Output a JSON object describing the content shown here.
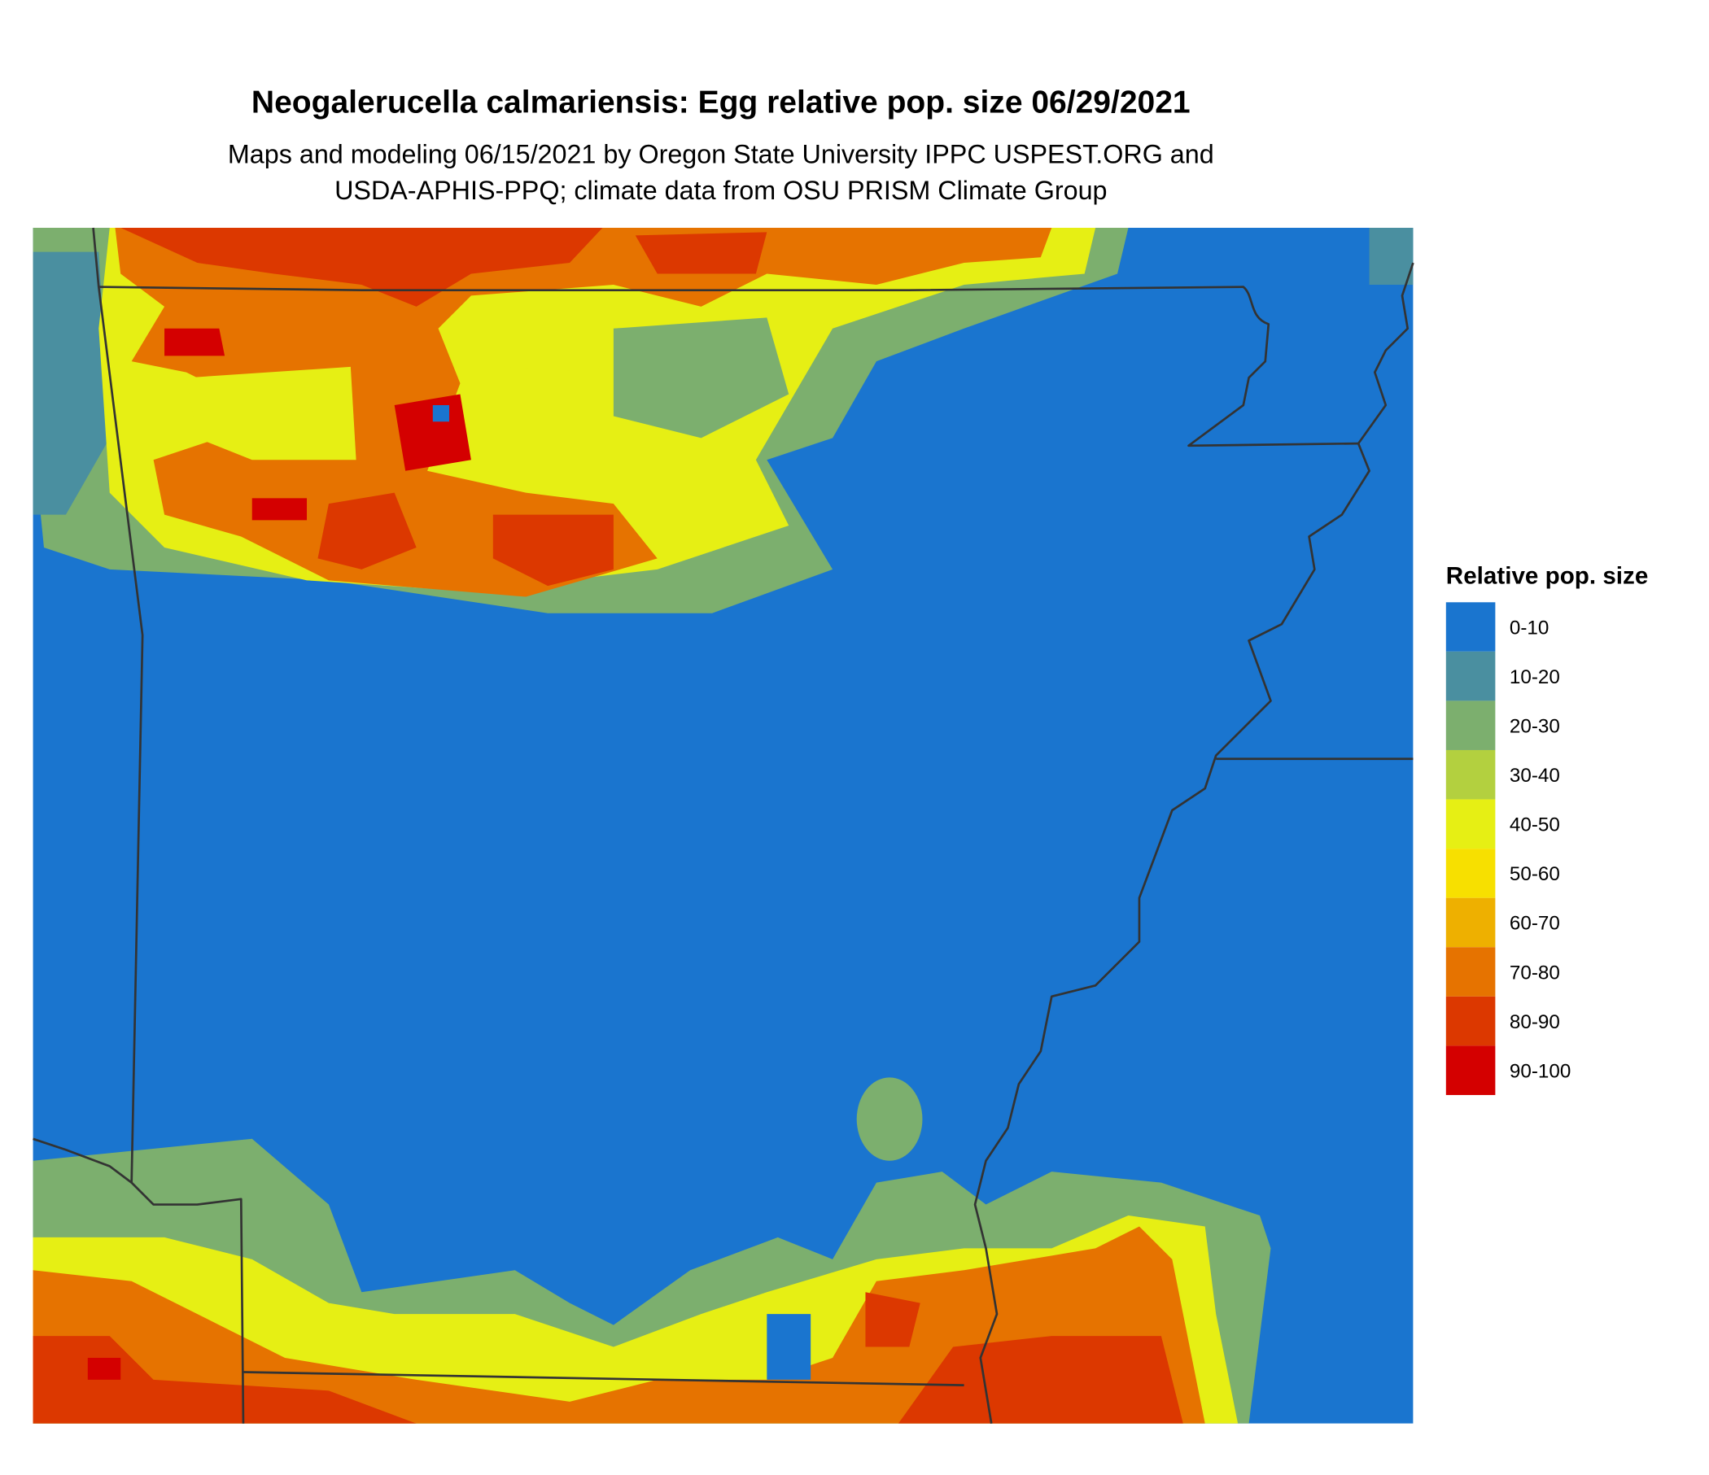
{
  "header": {
    "title": "Neogalerucella calmariensis: Egg relative pop. size 06/29/2021",
    "subtitle_lines": [
      "Maps and modeling 06/15/2021 by Oregon State University IPPC USPEST.ORG and",
      "USDA-APHIS-PPQ; climate data from OSU PRISM Climate Group"
    ]
  },
  "legend": {
    "title": "Relative pop. size",
    "items": [
      {
        "label": "0-10",
        "color": "#1a75cf"
      },
      {
        "label": "10-20",
        "color": "#4a8fa0"
      },
      {
        "label": "20-30",
        "color": "#7caf6e"
      },
      {
        "label": "30-40",
        "color": "#b3d03f"
      },
      {
        "label": "40-50",
        "color": "#e6ef14"
      },
      {
        "label": "50-60",
        "color": "#f7e000"
      },
      {
        "label": "60-70",
        "color": "#eeb000"
      },
      {
        "label": "70-80",
        "color": "#e67300"
      },
      {
        "label": "80-90",
        "color": "#dc3800"
      },
      {
        "label": "90-100",
        "color": "#d40000"
      }
    ]
  }
}
